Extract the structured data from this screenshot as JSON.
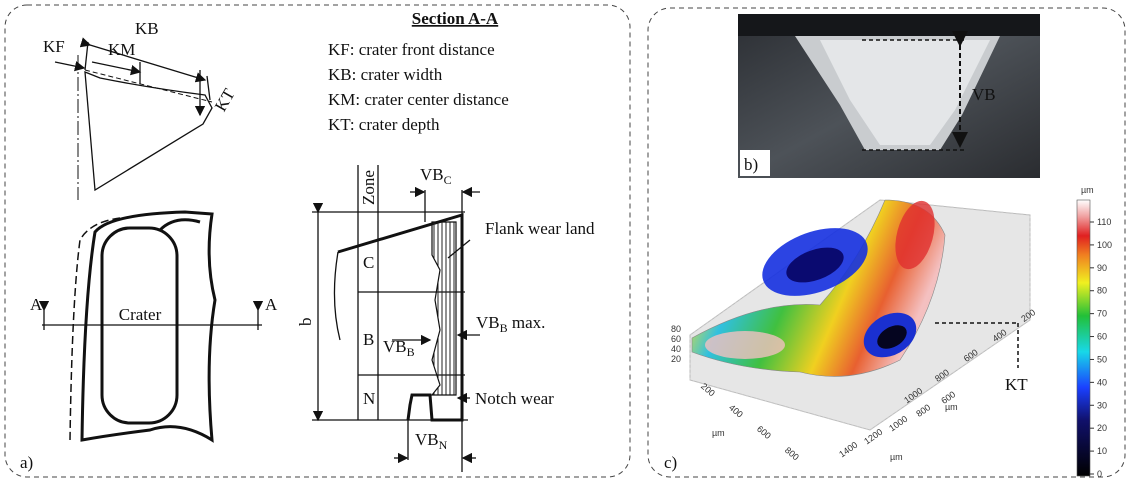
{
  "panel_a": {
    "label": "a)",
    "crater_labels": {
      "kb": "KB",
      "kf": "KF",
      "km": "KM",
      "kt": "KT"
    },
    "section_title": "Section A-A",
    "legend": [
      "KF: crater front distance",
      "KB: crater width",
      "KM: crater center distance",
      "KT: crater depth"
    ],
    "top_view": {
      "crater": "Crater",
      "section_marks": [
        "A",
        "A"
      ]
    },
    "flank_wear": {
      "zone": "Zone",
      "zones": [
        "C",
        "B",
        "N"
      ],
      "b": "b",
      "vbc": {
        "text": "VB",
        "sub": "C"
      },
      "flank_wear_land": "Flank wear land",
      "vbb_max": {
        "text": "VB",
        "sub": "B",
        "suffix": " max."
      },
      "vbb": {
        "text": "VB",
        "sub": "B"
      },
      "notch_wear": "Notch wear",
      "vbn": {
        "text": "VB",
        "sub": "N"
      }
    }
  },
  "panel_b": {
    "label": "b)",
    "vb": "VB"
  },
  "panel_c": {
    "label": "c)",
    "kt": "KT",
    "colorbar": {
      "unit": "µm",
      "ticks": [
        0,
        10,
        20,
        30,
        40,
        50,
        60,
        70,
        80,
        90,
        100,
        110
      ]
    },
    "axis_z": {
      "ticks": [
        80,
        60,
        40,
        20
      ]
    },
    "axis_x": {
      "ticks": [
        200,
        400,
        600,
        800
      ],
      "unit": "µm"
    },
    "axis_y": {
      "ticks": [
        1400,
        1200,
        1000,
        800,
        600
      ],
      "unit": "µm"
    },
    "axis_back": {
      "ticks": [
        200,
        400,
        600,
        800,
        1000
      ],
      "unit": "µm"
    }
  }
}
